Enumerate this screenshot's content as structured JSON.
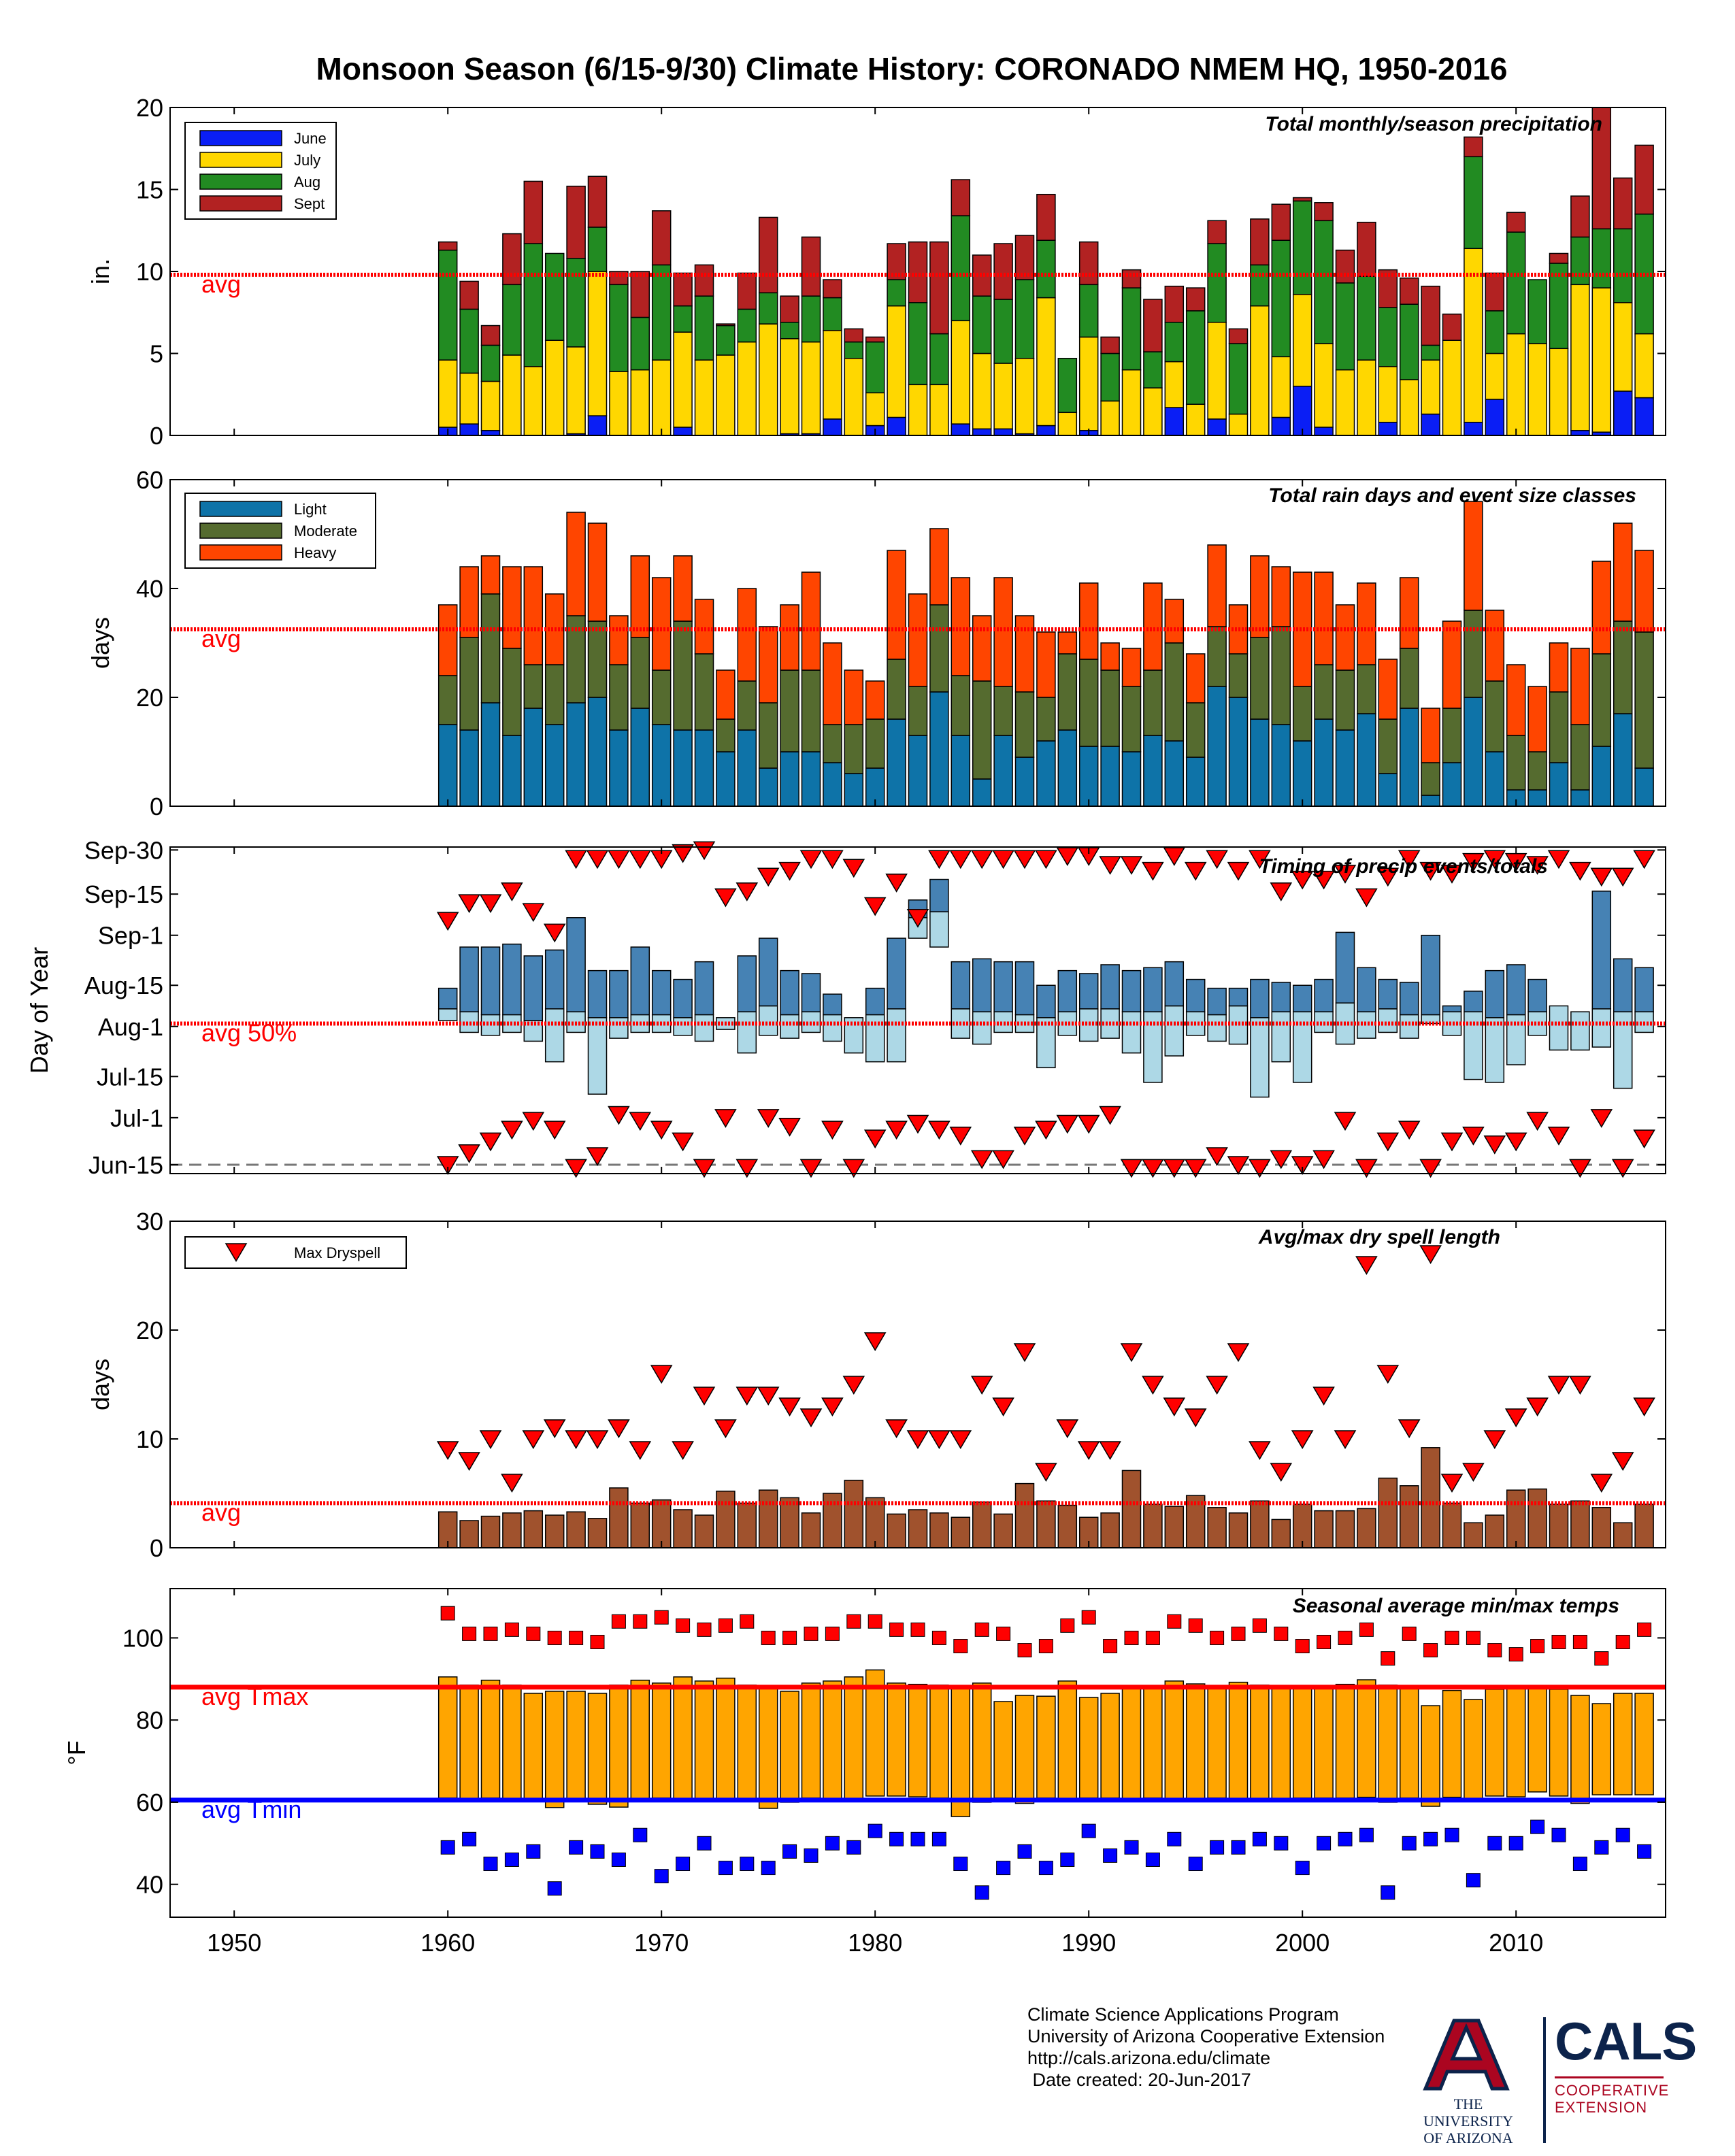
{
  "title": "Monsoon Season (6/15-9/30) Climate History: CORONADO NMEM HQ, 1950-2016",
  "x_ticks": [
    1950,
    1960,
    1970,
    1980,
    1990,
    2000,
    2010
  ],
  "years": [
    1960,
    1961,
    1962,
    1963,
    1964,
    1965,
    1966,
    1967,
    1968,
    1969,
    1970,
    1971,
    1972,
    1973,
    1974,
    1975,
    1976,
    1977,
    1978,
    1979,
    1980,
    1981,
    1982,
    1983,
    1984,
    1985,
    1986,
    1987,
    1988,
    1989,
    1990,
    1991,
    1992,
    1993,
    1994,
    1995,
    1996,
    1997,
    1998,
    1999,
    2000,
    2001,
    2002,
    2003,
    2004,
    2005,
    2006,
    2007,
    2008,
    2009,
    2010,
    2011,
    2012,
    2013,
    2014,
    2015,
    2016
  ],
  "chart_data": [
    {
      "type": "bar",
      "subtitle": "Total monthly/season precipitation",
      "ylabel": "in.",
      "ylim": [
        0,
        20
      ],
      "yticks": [
        0,
        5,
        10,
        15,
        20
      ],
      "stacked": true,
      "avg_value": 9.8,
      "avg_label": "avg",
      "series": [
        {
          "name": "June",
          "color": "#0a1ef5",
          "values": [
            0.5,
            0.7,
            0.3,
            0,
            0,
            0,
            0.1,
            1.2,
            0,
            0,
            0,
            0.5,
            0,
            0,
            0,
            0,
            0.1,
            0.1,
            1.0,
            0,
            0.6,
            1.1,
            0,
            0,
            0.7,
            0.4,
            0.4,
            0.1,
            0.6,
            0,
            0.3,
            0,
            0,
            0,
            1.7,
            0,
            1.0,
            0,
            0,
            1.1,
            3.0,
            0.5,
            0,
            0,
            0.8,
            0,
            1.3,
            0,
            0.8,
            2.2,
            0,
            0,
            0,
            0.3,
            0.2,
            2.7,
            2.3
          ]
        },
        {
          "name": "July",
          "color": "#ffd700",
          "values": [
            4.1,
            3.1,
            3.0,
            4.9,
            4.2,
            5.8,
            5.3,
            8.8,
            3.9,
            4.0,
            4.6,
            5.8,
            4.6,
            4.9,
            5.7,
            6.8,
            5.8,
            5.6,
            5.4,
            4.7,
            2.0,
            6.8,
            3.1,
            3.1,
            6.3,
            4.6,
            4.0,
            4.6,
            7.8,
            1.4,
            5.7,
            2.1,
            4.0,
            2.9,
            2.8,
            1.9,
            5.9,
            1.3,
            7.9,
            3.7,
            5.6,
            5.1,
            4.0,
            4.6,
            3.4,
            3.4,
            3.3,
            5.8,
            10.6,
            2.8,
            6.2,
            5.6,
            5.3,
            8.9,
            8.8,
            5.4,
            3.9
          ]
        },
        {
          "name": "Aug",
          "color": "#228b22",
          "values": [
            6.7,
            3.9,
            2.2,
            4.3,
            7.5,
            5.3,
            5.4,
            2.7,
            5.3,
            3.2,
            5.8,
            1.6,
            3.9,
            1.8,
            2.0,
            1.9,
            1.0,
            2.8,
            2.0,
            1.0,
            3.1,
            1.6,
            5.0,
            3.1,
            6.4,
            3.5,
            3.9,
            4.8,
            3.5,
            3.3,
            3.2,
            2.9,
            5.0,
            2.2,
            2.4,
            5.7,
            4.8,
            4.3,
            2.5,
            7.1,
            5.7,
            7.5,
            5.3,
            5.1,
            3.6,
            4.6,
            0.9,
            0,
            5.6,
            2.6,
            6.2,
            3.9,
            5.2,
            2.9,
            3.6,
            4.5,
            7.3
          ]
        },
        {
          "name": "Sept",
          "color": "#b22222",
          "values": [
            0.5,
            1.7,
            1.2,
            3.1,
            3.8,
            0,
            4.4,
            3.1,
            0.8,
            2.8,
            3.3,
            2.0,
            1.9,
            0.1,
            2.2,
            4.6,
            1.6,
            3.6,
            1.1,
            0.8,
            0.3,
            2.2,
            3.7,
            5.6,
            2.2,
            2.5,
            3.4,
            2.7,
            2.8,
            0,
            2.6,
            1.0,
            1.1,
            3.2,
            2.2,
            1.4,
            1.4,
            0.9,
            2.8,
            2.2,
            0.2,
            1.1,
            2.0,
            3.3,
            2.3,
            1.6,
            3.6,
            1.6,
            1.2,
            2.3,
            1.2,
            0,
            0.6,
            2.5,
            7.4,
            3.1,
            4.2
          ]
        }
      ]
    },
    {
      "type": "bar",
      "subtitle": "Total rain days and event size classes",
      "ylabel": "days",
      "ylim": [
        0,
        60
      ],
      "yticks": [
        0,
        20,
        40,
        60
      ],
      "stacked": true,
      "avg_value": 32.5,
      "avg_label": "avg",
      "series": [
        {
          "name": "Light",
          "color": "#0e73a8",
          "values": [
            15,
            14,
            19,
            13,
            18,
            15,
            19,
            20,
            14,
            18,
            15,
            14,
            14,
            10,
            14,
            7,
            10,
            10,
            8,
            6,
            7,
            16,
            13,
            21,
            13,
            5,
            13,
            9,
            12,
            14,
            11,
            11,
            10,
            13,
            12,
            9,
            22,
            20,
            16,
            15,
            12,
            16,
            14,
            17,
            6,
            18,
            2,
            8,
            20,
            10,
            3,
            3,
            8,
            3,
            11,
            17,
            7
          ]
        },
        {
          "name": "Moderate",
          "color": "#556b2f",
          "values": [
            9,
            17,
            20,
            16,
            8,
            11,
            16,
            14,
            12,
            13,
            10,
            20,
            14,
            6,
            9,
            12,
            15,
            15,
            7,
            9,
            9,
            11,
            9,
            16,
            11,
            18,
            9,
            12,
            8,
            14,
            16,
            14,
            12,
            12,
            18,
            10,
            11,
            8,
            15,
            18,
            10,
            10,
            11,
            9,
            10,
            11,
            6,
            10,
            16,
            13,
            10,
            7,
            13,
            12,
            17,
            17,
            25
          ]
        },
        {
          "name": "Heavy",
          "color": "#ff4500",
          "values": [
            13,
            13,
            7,
            15,
            18,
            13,
            19,
            18,
            9,
            15,
            17,
            12,
            10,
            9,
            17,
            14,
            12,
            18,
            15,
            10,
            7,
            20,
            17,
            14,
            18,
            12,
            20,
            14,
            12,
            4,
            14,
            5,
            7,
            16,
            8,
            9,
            15,
            9,
            15,
            11,
            21,
            17,
            12,
            15,
            11,
            13,
            10,
            16,
            20,
            13,
            13,
            12,
            9,
            14,
            17,
            18,
            15
          ]
        }
      ]
    },
    {
      "type": "timing",
      "subtitle": "Timing of precip events/totals",
      "ylabel": "Day of Year",
      "ylim_day": [
        -3,
        108
      ],
      "ytick_days": [
        0,
        16,
        30,
        47,
        61,
        78,
        92,
        107
      ],
      "ytick_labels": [
        "Jun-15",
        "Jul-1",
        "Jul-15",
        "Aug-1",
        "Aug-15",
        "Sep-1",
        "Sep-15",
        "Sep-30"
      ],
      "avg_value_day": 48,
      "avg_label": "avg 50%",
      "colors": {
        "lower": "#add8e6",
        "upper": "#4682b4",
        "marker": "#ff0000"
      },
      "p25_day": [
        49,
        45,
        44,
        45,
        42,
        35,
        45,
        24,
        43,
        45,
        45,
        44,
        42,
        46,
        38,
        44,
        43,
        45,
        42,
        38,
        35,
        35,
        77,
        74,
        43,
        41,
        45,
        45,
        33,
        44,
        42,
        43,
        38,
        28,
        37,
        44,
        42,
        41,
        23,
        35,
        28,
        45,
        41,
        43,
        45,
        43,
        48,
        44,
        29,
        28,
        34,
        44,
        39,
        39,
        40,
        26,
        45
      ],
      "p50_day": [
        53,
        52,
        51,
        51,
        49,
        53,
        52,
        50,
        50,
        51,
        51,
        50,
        51,
        50,
        52,
        54,
        51,
        52,
        51,
        50,
        51,
        53,
        84,
        86,
        53,
        52,
        52,
        51,
        50,
        52,
        53,
        53,
        52,
        52,
        54,
        52,
        51,
        54,
        50,
        52,
        52,
        52,
        55,
        52,
        53,
        51,
        51,
        52,
        52,
        50,
        51,
        52,
        54,
        52,
        53,
        52,
        52
      ],
      "p75_day": [
        60,
        74,
        74,
        75,
        71,
        73,
        84,
        66,
        66,
        74,
        66,
        63,
        69,
        50,
        71,
        77,
        66,
        65,
        58,
        50,
        60,
        77,
        90,
        97,
        69,
        70,
        69,
        69,
        61,
        66,
        65,
        68,
        66,
        67,
        69,
        63,
        60,
        60,
        63,
        62,
        61,
        63,
        79,
        67,
        63,
        62,
        78,
        54,
        59,
        66,
        68,
        63,
        48,
        52,
        93,
        70,
        67
      ],
      "early_day": [
        0,
        4,
        8,
        12,
        15,
        12,
        -1,
        3,
        17,
        15,
        12,
        8,
        -1,
        16,
        -1,
        16,
        13,
        -1,
        12,
        -1,
        9,
        12,
        14,
        12,
        10,
        2,
        2,
        10,
        12,
        14,
        14,
        17,
        -1,
        -1,
        -1,
        -1,
        3,
        0,
        -1,
        2,
        0,
        2,
        15,
        -1,
        8,
        12,
        -1,
        8,
        10,
        7,
        8,
        15,
        10,
        -1,
        16,
        -1,
        9
      ],
      "late_day": [
        83,
        89,
        89,
        93,
        86,
        79,
        104,
        104,
        104,
        104,
        104,
        106,
        107,
        91,
        93,
        98,
        100,
        104,
        104,
        101,
        88,
        96,
        84,
        104,
        104,
        104,
        104,
        104,
        104,
        105,
        105,
        102,
        102,
        100,
        105,
        100,
        104,
        100,
        104,
        93,
        97,
        97,
        99,
        91,
        98,
        104,
        100,
        99,
        103,
        104,
        103,
        102,
        104,
        100,
        98,
        98,
        104
      ]
    },
    {
      "type": "bar",
      "subtitle": "Avg/max dry spell length",
      "ylabel": "days",
      "ylim": [
        0,
        30
      ],
      "yticks": [
        0,
        10,
        20,
        30
      ],
      "avg_value": 4.1,
      "avg_label": "avg",
      "bar_color": "#a0522d",
      "marker_color": "#ff0000",
      "legend": "Max Dryspell",
      "avg_values": [
        3.3,
        2.5,
        2.9,
        3.2,
        3.4,
        3.0,
        3.3,
        2.7,
        5.5,
        4.1,
        4.4,
        3.5,
        3.0,
        5.2,
        4.1,
        5.3,
        4.6,
        3.2,
        5.0,
        6.2,
        4.6,
        3.1,
        3.5,
        3.2,
        2.8,
        4.2,
        3.1,
        5.9,
        4.3,
        3.9,
        2.8,
        3.2,
        7.1,
        4.0,
        3.8,
        4.8,
        3.7,
        3.2,
        4.3,
        2.6,
        4.0,
        3.4,
        3.4,
        3.6,
        6.4,
        5.7,
        9.2,
        4.1,
        2.3,
        3.0,
        5.3,
        5.4,
        4.0,
        4.3,
        3.7,
        2.3,
        4.0
      ],
      "max_values": [
        9,
        8,
        10,
        6,
        10,
        11,
        10,
        10,
        11,
        9,
        16,
        9,
        14,
        11,
        14,
        14,
        13,
        12,
        13,
        15,
        19,
        11,
        10,
        10,
        10,
        15,
        13,
        18,
        7,
        11,
        9,
        9,
        18,
        15,
        13,
        12,
        15,
        18,
        9,
        7,
        10,
        14,
        10,
        26,
        16,
        11,
        27,
        6,
        7,
        10,
        12,
        13,
        15,
        15,
        6,
        8,
        13
      ]
    },
    {
      "type": "bar",
      "subtitle": "Seasonal average min/max temps",
      "ylabel": "°F",
      "ylim": [
        32,
        112
      ],
      "yticks": [
        40,
        60,
        80,
        100
      ],
      "avg_tmax": 88,
      "avg_tmin": 60.5,
      "avg_tmax_label": "avg Tmax",
      "avg_tmin_label": "avg Tmin",
      "bar_color": "#ffa500",
      "tmax_color": "#ff0000",
      "tmin_color": "#0000ff",
      "tmax_avg": [
        90.5,
        88.5,
        89.7,
        88.5,
        86.5,
        87,
        87,
        86.5,
        88.5,
        89.7,
        89,
        90.5,
        89.5,
        90.2,
        88.5,
        88,
        87,
        89,
        89.5,
        90.5,
        92.2,
        89,
        88.7,
        88.5,
        88,
        89,
        84.5,
        86,
        85.8,
        89.5,
        85.5,
        86.5,
        87.8,
        88,
        89.5,
        88.8,
        88.2,
        89.2,
        88.5,
        87.8,
        87.8,
        88.2,
        88.7,
        89.8,
        88.5,
        87.8,
        83.5,
        87.2,
        85,
        87.5,
        87.8,
        88,
        87.5,
        86,
        84,
        86.5,
        86.5
      ],
      "tmin_avg": [
        61,
        60.5,
        61,
        60.3,
        60.5,
        58.7,
        60.5,
        59.5,
        58.8,
        60.5,
        61,
        60.5,
        60.7,
        60.5,
        60.5,
        58.5,
        60,
        61,
        60.5,
        60.5,
        61.5,
        61.5,
        61.3,
        61,
        56.5,
        60,
        61,
        59.7,
        61,
        60.5,
        61,
        61,
        60.8,
        61,
        60.5,
        60.7,
        61,
        60.7,
        60.8,
        60.8,
        61,
        61,
        61,
        61.2,
        60,
        61,
        59,
        61.2,
        60.3,
        61.5,
        61.3,
        62.5,
        61.5,
        59.7,
        61.8,
        61.8,
        61.8
      ],
      "tmax_extreme": [
        106,
        101,
        101,
        102,
        101,
        100,
        100,
        99,
        104,
        104,
        105,
        103,
        102,
        103,
        104,
        100,
        100,
        101,
        101,
        104,
        104,
        102,
        102,
        100,
        98,
        102,
        101,
        97,
        98,
        103,
        105,
        98,
        100,
        100,
        104,
        103,
        100,
        101,
        103,
        101,
        98,
        99,
        100,
        102,
        95,
        101,
        97,
        100,
        100,
        97,
        96,
        98,
        99,
        99,
        95,
        99,
        102
      ],
      "tmin_extreme": [
        49,
        51,
        45,
        46,
        48,
        39,
        49,
        48,
        46,
        52,
        42,
        45,
        50,
        44,
        45,
        44,
        48,
        47,
        50,
        49,
        53,
        51,
        51,
        51,
        45,
        38,
        44,
        48,
        44,
        46,
        53,
        47,
        49,
        46,
        51,
        45,
        49,
        49,
        51,
        50,
        44,
        50,
        51,
        52,
        38,
        50,
        51,
        52,
        41,
        50,
        50,
        54,
        52,
        45,
        49,
        52,
        48
      ]
    }
  ],
  "footer": {
    "line1": "Climate Science Applications Program",
    "line2": "University of Arizona Cooperative Extension",
    "line3": "http://cals.arizona.edu/climate",
    "line4": " Date created: 20-Jun-2017"
  },
  "logos": {
    "ua_letter": "A",
    "ua_line1": "THE UNIVERSITY",
    "ua_line2": "OF ARIZONA",
    "cals": "CALS",
    "cals_line1": "COOPERATIVE",
    "cals_line2": "EXTENSION"
  }
}
